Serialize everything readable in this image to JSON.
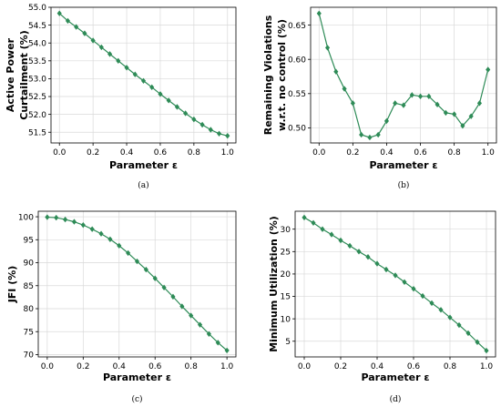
{
  "chart_data": [
    {
      "type": "line",
      "xlabel": "Parameter ε",
      "ylabel_lines": [
        "Active Power",
        "Curtailment (%)"
      ],
      "caption": "(a)",
      "xlim": [
        -0.05,
        1.05
      ],
      "ylim": [
        51.2,
        55.0
      ],
      "xticks": [
        0.0,
        0.2,
        0.4,
        0.6,
        0.8,
        1.0
      ],
      "xtick_labels": [
        "0.0",
        "0.2",
        "0.4",
        "0.6",
        "0.8",
        "1.0"
      ],
      "yticks": [
        51.5,
        52.0,
        52.5,
        53.0,
        53.5,
        54.0,
        54.5,
        55.0
      ],
      "ytick_labels": [
        "51.5",
        "52.0",
        "52.5",
        "53.0",
        "53.5",
        "54.0",
        "54.5",
        "55.0"
      ],
      "grid": true,
      "color": "#2e8b57",
      "series": [
        {
          "x": [
            0.0,
            0.05,
            0.1,
            0.15,
            0.2,
            0.25,
            0.3,
            0.35,
            0.4,
            0.45,
            0.5,
            0.55,
            0.6,
            0.65,
            0.7,
            0.75,
            0.8,
            0.85,
            0.9,
            0.95,
            1.0
          ],
          "y": [
            54.83,
            54.62,
            54.45,
            54.27,
            54.07,
            53.88,
            53.69,
            53.5,
            53.31,
            53.12,
            52.94,
            52.76,
            52.57,
            52.39,
            52.21,
            52.03,
            51.86,
            51.71,
            51.57,
            51.46,
            51.4
          ]
        }
      ]
    },
    {
      "type": "line",
      "xlabel": "Parameter ε",
      "ylabel_lines": [
        "Remaining Violations",
        "w.r.t. no control (%)"
      ],
      "caption": "(b)",
      "xlim": [
        -0.05,
        1.05
      ],
      "ylim": [
        0.478,
        0.676
      ],
      "xticks": [
        0.0,
        0.2,
        0.4,
        0.6,
        0.8,
        1.0
      ],
      "xtick_labels": [
        "0.0",
        "0.2",
        "0.4",
        "0.6",
        "0.8",
        "1.0"
      ],
      "yticks": [
        0.5,
        0.55,
        0.6,
        0.65
      ],
      "ytick_labels": [
        "0.50",
        "0.55",
        "0.60",
        "0.65"
      ],
      "grid": true,
      "color": "#2e8b57",
      "series": [
        {
          "x": [
            0.0,
            0.05,
            0.1,
            0.15,
            0.2,
            0.25,
            0.3,
            0.35,
            0.4,
            0.45,
            0.5,
            0.55,
            0.6,
            0.65,
            0.7,
            0.75,
            0.8,
            0.85,
            0.9,
            0.95,
            1.0
          ],
          "y": [
            0.667,
            0.617,
            0.582,
            0.557,
            0.536,
            0.49,
            0.486,
            0.49,
            0.51,
            0.536,
            0.533,
            0.548,
            0.546,
            0.546,
            0.534,
            0.522,
            0.52,
            0.503,
            0.517,
            0.536,
            0.585
          ]
        }
      ]
    },
    {
      "type": "line",
      "xlabel": "Parameter ε",
      "ylabel_lines": [
        "JFI (%)"
      ],
      "caption": "(c)",
      "xlim": [
        -0.05,
        1.05
      ],
      "ylim": [
        69.5,
        101.2
      ],
      "xticks": [
        0.0,
        0.2,
        0.4,
        0.6,
        0.8,
        1.0
      ],
      "xtick_labels": [
        "0.0",
        "0.2",
        "0.4",
        "0.6",
        "0.8",
        "1.0"
      ],
      "yticks": [
        70,
        75,
        80,
        85,
        90,
        95,
        100
      ],
      "ytick_labels": [
        "70",
        "75",
        "80",
        "85",
        "90",
        "95",
        "100"
      ],
      "grid": true,
      "color": "#2e8b57",
      "series": [
        {
          "x": [
            0.0,
            0.05,
            0.1,
            0.15,
            0.2,
            0.25,
            0.3,
            0.35,
            0.4,
            0.45,
            0.5,
            0.55,
            0.6,
            0.65,
            0.7,
            0.75,
            0.8,
            0.85,
            0.9,
            0.95,
            1.0
          ],
          "y": [
            99.9,
            99.8,
            99.4,
            98.9,
            98.2,
            97.3,
            96.3,
            95.1,
            93.7,
            92.1,
            90.3,
            88.5,
            86.6,
            84.6,
            82.6,
            80.5,
            78.5,
            76.5,
            74.5,
            72.6,
            70.9
          ]
        }
      ]
    },
    {
      "type": "line",
      "xlabel": "Parameter ε",
      "ylabel_lines": [
        "Minimum Utilization (%)"
      ],
      "caption": "(d)",
      "xlim": [
        -0.05,
        1.05
      ],
      "ylim": [
        1.5,
        34.0
      ],
      "xticks": [
        0.0,
        0.2,
        0.4,
        0.6,
        0.8,
        1.0
      ],
      "xtick_labels": [
        "0.0",
        "0.2",
        "0.4",
        "0.6",
        "0.8",
        "1.0"
      ],
      "yticks": [
        5,
        10,
        15,
        20,
        25,
        30
      ],
      "ytick_labels": [
        "5",
        "10",
        "15",
        "20",
        "25",
        "30"
      ],
      "grid": true,
      "color": "#2e8b57",
      "series": [
        {
          "x": [
            0.0,
            0.05,
            0.1,
            0.15,
            0.2,
            0.25,
            0.3,
            0.35,
            0.4,
            0.45,
            0.5,
            0.55,
            0.6,
            0.65,
            0.7,
            0.75,
            0.8,
            0.85,
            0.9,
            0.95,
            1.0
          ],
          "y": [
            32.6,
            31.4,
            30.0,
            28.8,
            27.5,
            26.3,
            25.0,
            23.8,
            22.3,
            21.0,
            19.7,
            18.2,
            16.7,
            15.1,
            13.5,
            12.0,
            10.3,
            8.6,
            6.8,
            4.8,
            2.9
          ]
        }
      ]
    }
  ]
}
